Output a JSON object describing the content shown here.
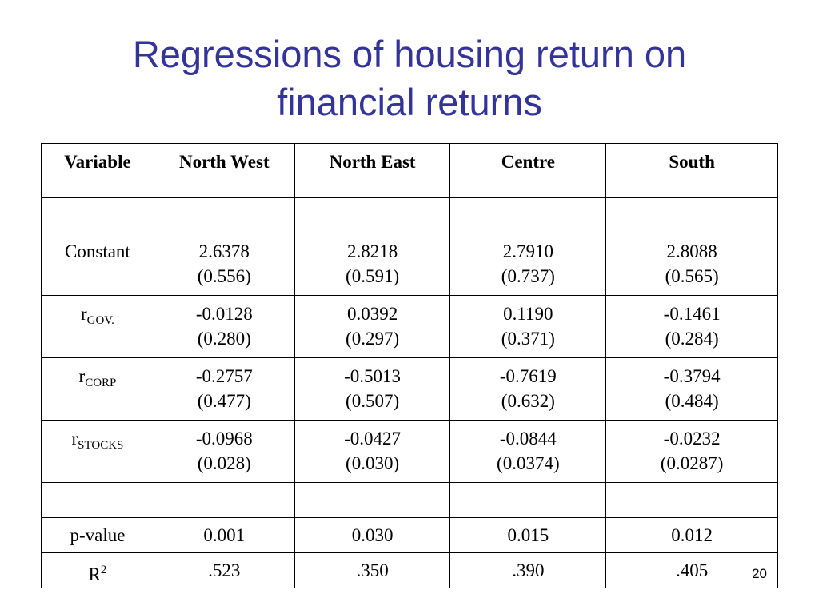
{
  "slide": {
    "title_line1": "Regressions of housing return on",
    "title_line2": "financial returns",
    "page_number": "20"
  },
  "table": {
    "headers": [
      "Variable",
      "North West",
      "North East",
      "Centre",
      "South"
    ],
    "rows": {
      "constant": {
        "label": "Constant",
        "cells": [
          {
            "value": "2.6378",
            "se": "(0.556)"
          },
          {
            "value": "2.8218",
            "se": "(0.591)"
          },
          {
            "value": "2.7910",
            "se": "(0.737)"
          },
          {
            "value": "2.8088",
            "se": "(0.565)"
          }
        ]
      },
      "r_gov": {
        "label_main": "r",
        "label_sub": "GOV.",
        "cells": [
          {
            "value": "-0.0128",
            "se": "(0.280)"
          },
          {
            "value": "0.0392",
            "se": "(0.297)"
          },
          {
            "value": "0.1190",
            "se": "(0.371)"
          },
          {
            "value": "-0.1461",
            "se": "(0.284)"
          }
        ]
      },
      "r_corp": {
        "label_main": "r",
        "label_sub": "CORP",
        "cells": [
          {
            "value": "-0.2757",
            "se": "(0.477)"
          },
          {
            "value": "-0.5013",
            "se": "(0.507)"
          },
          {
            "value": "-0.7619",
            "se": "(0.632)"
          },
          {
            "value": "-0.3794",
            "se": "(0.484)"
          }
        ]
      },
      "r_stocks": {
        "label_main": "r",
        "label_sub": "STOCKS",
        "cells": [
          {
            "value": "-0.0968",
            "se": "(0.028)",
            "bold": true
          },
          {
            "value": "-0.0427",
            "se": "(0.030)",
            "bold": false
          },
          {
            "value": "-0.0844",
            "se": "(0.0374)",
            "bold": true
          },
          {
            "value": "-0.0232",
            "se": "(0.0287)",
            "bold": false
          }
        ]
      },
      "p_value": {
        "label": "p-value",
        "cells": [
          "0.001",
          "0.030",
          "0.015",
          "0.012"
        ]
      },
      "r_squared": {
        "label_main": "R",
        "label_sup": "2",
        "cells": [
          ".523",
          ".350",
          ".390",
          ".405"
        ]
      }
    }
  }
}
